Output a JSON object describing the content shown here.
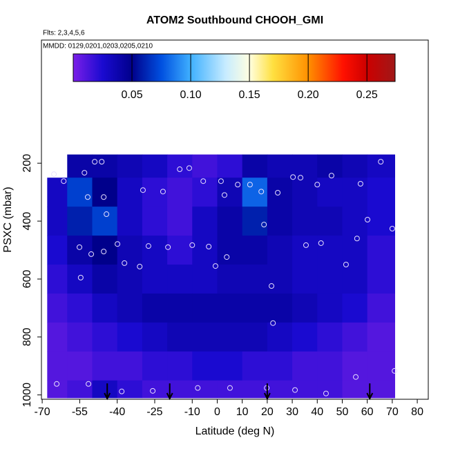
{
  "chart_data": {
    "type": "curtain",
    "title": "ATOM2 Southbound CHOOH_GMI",
    "subtitle": "Flts: 2,3,4,5,6",
    "annotation": "MMDD: 0129,0201,0203,0205,0210",
    "xlabel": "Latitude (deg N)",
    "ylabel": "PSXC (mbar)",
    "xlim": [
      -70.3,
      84.4
    ],
    "xticks": [
      -70,
      -55,
      -40,
      -25,
      -10,
      0,
      10,
      20,
      30,
      40,
      50,
      60,
      70,
      80
    ],
    "ylim": [
      1015,
      -225
    ],
    "yticks": [
      200,
      400,
      600,
      800,
      1000
    ],
    "colorbar_lim": [
      0,
      0.274
    ],
    "colorbar_ticks": [
      0.05,
      {
        "value": 0.1,
        "label": "0.10"
      },
      0.15,
      {
        "value": 0.2,
        "label": "0.20"
      },
      0.25
    ],
    "colorscale": [
      [
        0,
        "#7b1fe8"
      ],
      [
        0.025,
        "#1a0ad0"
      ],
      [
        0.05,
        "#00008b"
      ],
      [
        0.075,
        "#0050e0"
      ],
      [
        0.1,
        "#3fb0ff"
      ],
      [
        0.13,
        "#c8ecff"
      ],
      [
        0.15,
        "#ffffe0"
      ],
      [
        0.17,
        "#ffe040"
      ],
      [
        0.2,
        "#ff9000"
      ],
      [
        0.23,
        "#ff1000"
      ],
      [
        0.25,
        "#cc0000"
      ],
      [
        0.274,
        "#a01818"
      ]
    ],
    "lat_edges": [
      -68,
      -60,
      -50,
      -40,
      -30,
      -20,
      -10,
      0,
      10,
      20,
      30,
      40,
      50,
      60,
      71
    ],
    "pressure_edges": [
      170,
      250,
      350,
      450,
      550,
      650,
      750,
      850,
      950,
      1010
    ],
    "z": [
      [
        null,
        0.04,
        0.04,
        0.035,
        0.03,
        0.02,
        0.015,
        0.02,
        0.04,
        0.035,
        0.035,
        0.04,
        0.035,
        0.03
      ],
      [
        0.03,
        0.07,
        0.05,
        0.03,
        0.02,
        0.015,
        0.02,
        0.035,
        0.08,
        0.04,
        0.035,
        0.03,
        0.03,
        0.025
      ],
      [
        0.03,
        0.06,
        0.07,
        0.03,
        0.02,
        0.015,
        0.03,
        0.04,
        0.06,
        0.04,
        0.035,
        0.035,
        0.03,
        0.025
      ],
      [
        0.025,
        0.04,
        0.05,
        0.035,
        0.03,
        0.02,
        0.03,
        0.04,
        0.04,
        0.035,
        0.03,
        0.03,
        0.03,
        0.02
      ],
      [
        0.02,
        0.03,
        0.04,
        0.035,
        0.03,
        0.03,
        0.03,
        0.035,
        0.035,
        0.035,
        0.03,
        0.03,
        0.03,
        0.02
      ],
      [
        0.015,
        0.02,
        0.03,
        0.035,
        0.04,
        0.04,
        0.04,
        0.04,
        0.04,
        0.04,
        0.035,
        0.03,
        0.025,
        0.015
      ],
      [
        0.01,
        0.015,
        0.02,
        0.025,
        0.03,
        0.035,
        0.035,
        0.035,
        0.035,
        0.03,
        0.025,
        0.02,
        0.015,
        0.01
      ],
      [
        0.01,
        0.01,
        0.015,
        0.015,
        0.02,
        0.02,
        0.025,
        0.025,
        0.02,
        0.02,
        0.015,
        0.015,
        0.01,
        0.01
      ],
      [
        0.01,
        0.015,
        0.03,
        0.02,
        0.015,
        0.015,
        0.015,
        0.015,
        0.015,
        0.015,
        0.015,
        0.015,
        0.01,
        0.01
      ]
    ],
    "points": {
      "x": [
        -65.3,
        -61.4,
        -49,
        -46.2,
        -53.1,
        -51.8,
        -45.4,
        -44.3,
        -55.1,
        -54.6,
        -50.4,
        -45.4,
        -39.9,
        -37.1,
        -31,
        -29.7,
        -27.5,
        -19.7,
        -21.7,
        -15,
        -11.2,
        -10,
        -5.6,
        -3.4,
        -0.7,
        1.5,
        2.9,
        3.8,
        8.2,
        13.1,
        17.6,
        18.7,
        21.7,
        22.3,
        24.2,
        30.3,
        33.3,
        35.5,
        40,
        41.5,
        45.7,
        51.5,
        55.9,
        57.3,
        60.1,
        65.4,
        70,
        -64.2,
        -51.5,
        -38.2,
        -25.8,
        -7.8,
        5.1,
        19.8,
        31.1,
        43.5,
        55.4,
        70.9
      ],
      "y": [
        238,
        262,
        195,
        195,
        233,
        317,
        317,
        376,
        490,
        595,
        514,
        505,
        479,
        545,
        557,
        293,
        486,
        490,
        298,
        221,
        217,
        483,
        262,
        488,
        555,
        262,
        310,
        524,
        274,
        274,
        298,
        412,
        624,
        752,
        302,
        248,
        250,
        483,
        274,
        476,
        243,
        550,
        460,
        271,
        395,
        195,
        426,
        962,
        962,
        988,
        986,
        976,
        976,
        976,
        983,
        995,
        938,
        917
      ]
    },
    "markers_x": [
      -44,
      -19,
      20,
      61
    ]
  }
}
